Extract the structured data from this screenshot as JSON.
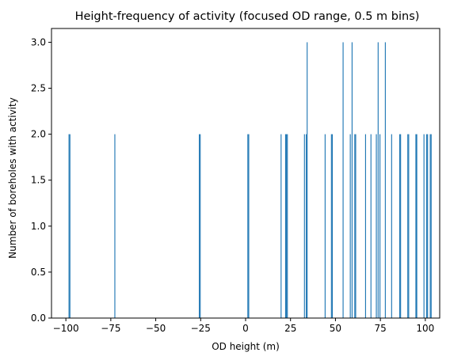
{
  "chart_data": {
    "type": "bar",
    "title": "Height-frequency of activity (focused OD range, 0.5 m bins)",
    "xlabel": "OD height (m)",
    "ylabel": "Number of boreholes with activity",
    "xlim": [
      -108,
      108
    ],
    "ylim": [
      0,
      3.15
    ],
    "bin_width": 0.5,
    "bar_color": "#1f77b4",
    "grid": false,
    "xticks": [
      -100,
      -75,
      -50,
      -25,
      0,
      25,
      50,
      75,
      100
    ],
    "xtick_labels": [
      "−100",
      "−75",
      "−50",
      "−25",
      "0",
      "25",
      "50",
      "75",
      "100"
    ],
    "yticks": [
      0.0,
      0.5,
      1.0,
      1.5,
      2.0,
      2.5,
      3.0
    ],
    "ytick_labels": [
      "0.0",
      "0.5",
      "1.0",
      "1.5",
      "2.0",
      "2.5",
      "3.0"
    ],
    "series": [
      {
        "x": [
          -98.5,
          -98.0,
          -73.0,
          -26.0,
          -25.5,
          1.0,
          1.5,
          19.5,
          22.0,
          22.5,
          23.0,
          32.5,
          33.5,
          34.0,
          44.0,
          47.5,
          48.0,
          54.0,
          58.0,
          59.0,
          60.5,
          61.0,
          66.5,
          69.5,
          72.5,
          73.5,
          74.5,
          77.5,
          81.0,
          85.5,
          86.0,
          90.0,
          90.5,
          94.5,
          95.0,
          99.0,
          100.5,
          101.0,
          102.5,
          103.0
        ],
        "values": [
          2,
          2,
          2,
          2,
          2,
          2,
          2,
          2,
          2,
          2,
          2,
          2,
          2,
          3,
          2,
          2,
          2,
          3,
          2,
          3,
          2,
          2,
          2,
          2,
          2,
          3,
          2,
          3,
          2,
          2,
          2,
          2,
          2,
          2,
          2,
          2,
          2,
          2,
          2,
          2
        ]
      }
    ]
  }
}
